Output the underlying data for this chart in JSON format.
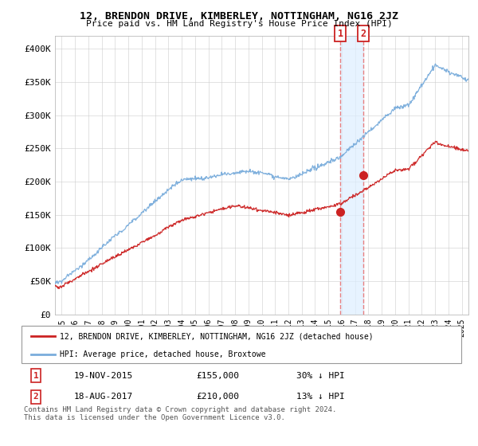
{
  "title": "12, BRENDON DRIVE, KIMBERLEY, NOTTINGHAM, NG16 2JZ",
  "subtitle": "Price paid vs. HM Land Registry's House Price Index (HPI)",
  "ylabel_ticks": [
    "£0",
    "£50K",
    "£100K",
    "£150K",
    "£200K",
    "£250K",
    "£300K",
    "£350K",
    "£400K"
  ],
  "ytick_values": [
    0,
    50000,
    100000,
    150000,
    200000,
    250000,
    300000,
    350000,
    400000
  ],
  "ylim": [
    0,
    420000
  ],
  "xlim_start": 1994.5,
  "xlim_end": 2025.5,
  "hpi_color": "#7aaddc",
  "price_color": "#cc2222",
  "vline_color": "#e88080",
  "shade_color": "#ddeeff",
  "legend_label_red": "12, BRENDON DRIVE, KIMBERLEY, NOTTINGHAM, NG16 2JZ (detached house)",
  "legend_label_blue": "HPI: Average price, detached house, Broxtowe",
  "transaction_1_date": 2015.89,
  "transaction_1_price": 155000,
  "transaction_2_date": 2017.63,
  "transaction_2_price": 210000,
  "footnote": "Contains HM Land Registry data © Crown copyright and database right 2024.\nThis data is licensed under the Open Government Licence v3.0.",
  "table_row1": [
    "1",
    "19-NOV-2015",
    "£155,000",
    "30% ↓ HPI"
  ],
  "table_row2": [
    "2",
    "18-AUG-2017",
    "£210,000",
    "13% ↓ HPI"
  ]
}
